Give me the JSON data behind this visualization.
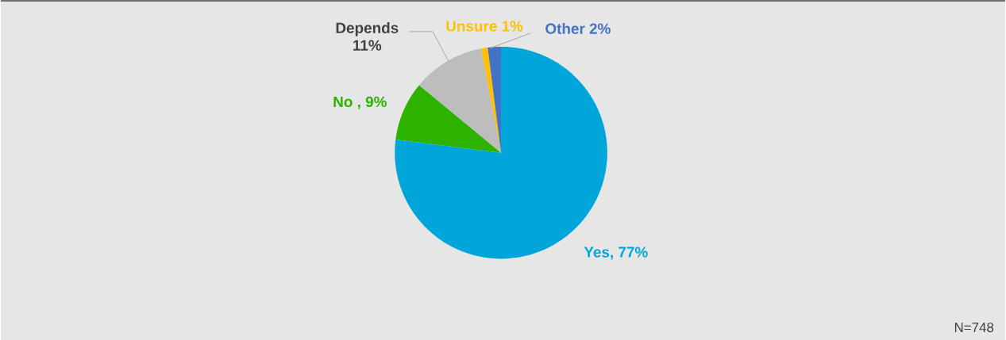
{
  "chart_data": {
    "type": "pie",
    "categories": [
      "Yes, 77%",
      "No , 9%",
      "Depends 11%",
      "Unsure 1%",
      "Other 2%"
    ],
    "values": [
      77,
      9,
      11,
      1,
      2
    ],
    "colors": [
      "#00a6d9",
      "#2db200",
      "#bdbdbd",
      "#ffc000",
      "#4472c4"
    ],
    "annotations": [
      "N=748"
    ]
  }
}
